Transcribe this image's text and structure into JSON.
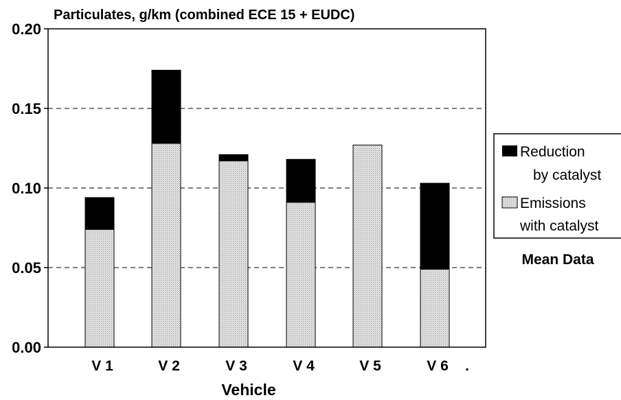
{
  "chart_data": {
    "type": "bar",
    "stacked": true,
    "title": "Particulates, g/km  (combined ECE 15 + EUDC)",
    "xlabel": "Vehicle",
    "ylabel": "",
    "ylim": [
      0,
      0.2
    ],
    "yticks": [
      "0.00",
      "0.05",
      "0.10",
      "0.15",
      "0.20"
    ],
    "categories": [
      "V 1",
      "V 2",
      "V 3",
      "V 4",
      "V 5",
      "V 6"
    ],
    "trailing_mark": ".",
    "series": [
      {
        "name": "Emissions with catalyst",
        "legend_lines": [
          "Emissions",
          "with catalyst"
        ],
        "color": "#d4d4d4",
        "values": [
          0.074,
          0.128,
          0.117,
          0.091,
          0.127,
          0.049
        ]
      },
      {
        "name": "Reduction by catalyst",
        "legend_lines": [
          "Reduction",
          "by catalyst"
        ],
        "color": "#000000",
        "values": [
          0.02,
          0.046,
          0.004,
          0.027,
          0.0,
          0.054
        ]
      }
    ],
    "grid": "horizontal dashed",
    "legend_position": "right",
    "annotation": "Mean Data"
  }
}
